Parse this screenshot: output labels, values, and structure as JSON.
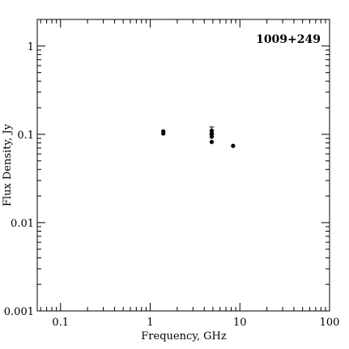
{
  "chart_data": {
    "type": "scatter",
    "title": "1009+249",
    "xlabel": "Frequency, GHz",
    "ylabel": "Flux Density, Jy",
    "xscale": "log",
    "yscale": "log",
    "xlim": [
      0.055,
      100
    ],
    "ylim": [
      0.001,
      2
    ],
    "grid": false,
    "legend": "none",
    "x_ticks": [
      {
        "value": 0.1,
        "label": "0.1"
      },
      {
        "value": 1,
        "label": "1"
      },
      {
        "value": 10,
        "label": "10"
      },
      {
        "value": 100,
        "label": "100"
      }
    ],
    "y_ticks": [
      {
        "value": 0.001,
        "label": "0.001"
      },
      {
        "value": 0.01,
        "label": "0.01"
      },
      {
        "value": 0.1,
        "label": "0.1"
      },
      {
        "value": 1,
        "label": "1"
      }
    ],
    "points": [
      {
        "x": 1.4,
        "y": 0.108
      },
      {
        "x": 1.4,
        "y": 0.102
      },
      {
        "x": 4.85,
        "y": 0.11,
        "yerr_low": 0.099,
        "yerr_high": 0.121
      },
      {
        "x": 4.85,
        "y": 0.102
      },
      {
        "x": 4.85,
        "y": 0.094
      },
      {
        "x": 4.85,
        "y": 0.082
      },
      {
        "x": 8.4,
        "y": 0.074
      }
    ]
  }
}
